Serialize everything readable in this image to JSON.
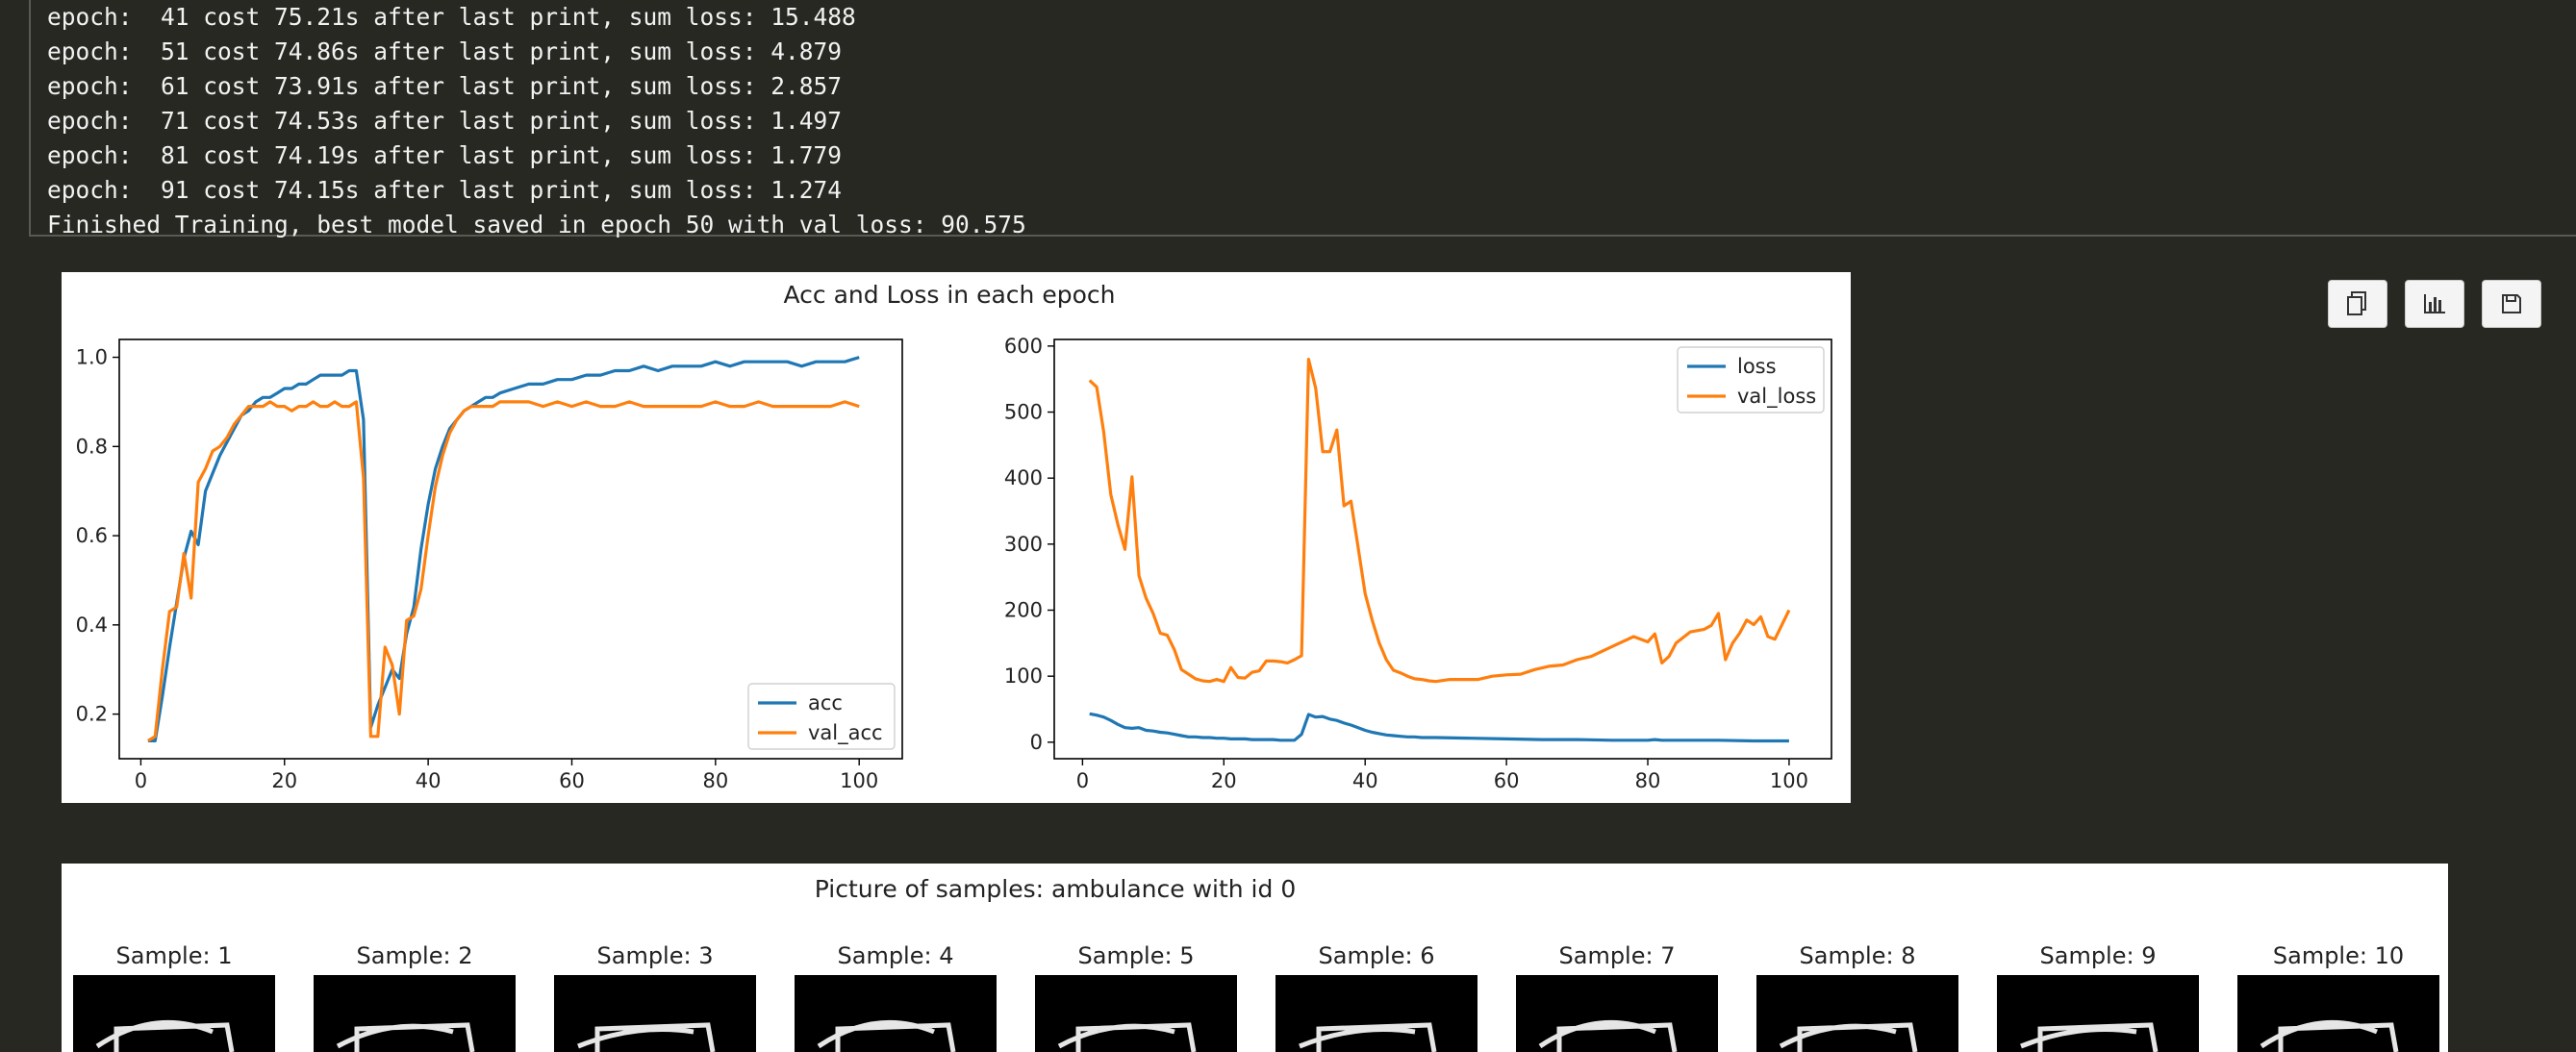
{
  "console": {
    "lines": [
      "epoch:  41 cost 75.21s after last print, sum loss: 15.488",
      "epoch:  51 cost 74.86s after last print, sum loss: 4.879",
      "epoch:  61 cost 73.91s after last print, sum loss: 2.857",
      "epoch:  71 cost 74.53s after last print, sum loss: 1.497",
      "epoch:  81 cost 74.19s after last print, sum loss: 1.779",
      "epoch:  91 cost 74.15s after last print, sum loss: 1.274",
      "Finished Training, best model saved in epoch 50 with val loss: 90.575"
    ]
  },
  "toolbar": {
    "icons": [
      "copy-icon",
      "chart-icon",
      "save-icon"
    ]
  },
  "colors": {
    "background": "#272822",
    "series_blue": "#1f77b4",
    "series_orange": "#ff7f0e"
  },
  "figure1": {
    "suptitle": "Acc and Loss in each epoch"
  },
  "figure2": {
    "title": "Picture of samples: ambulance with id 0",
    "samples": [
      "Sample: 1",
      "Sample: 2",
      "Sample: 3",
      "Sample: 4",
      "Sample: 5",
      "Sample: 6",
      "Sample: 7",
      "Sample: 8",
      "Sample: 9",
      "Sample: 10"
    ]
  },
  "chart_data": [
    {
      "type": "line",
      "title": "",
      "xlabel": "",
      "ylabel": "",
      "xlim": [
        -3,
        106
      ],
      "ylim": [
        0.1,
        1.04
      ],
      "xticks": [
        0,
        20,
        40,
        60,
        80,
        100
      ],
      "yticks": [
        0.2,
        0.4,
        0.6,
        0.8,
        1.0
      ],
      "ytick_labels": [
        "0.2",
        "0.4",
        "0.6",
        "0.8",
        "1.0"
      ],
      "legend_position": "lower-right",
      "series": [
        {
          "name": "acc",
          "color": "#1f77b4",
          "x": [
            1,
            2,
            3,
            4,
            5,
            6,
            7,
            8,
            9,
            10,
            11,
            12,
            13,
            14,
            15,
            16,
            17,
            18,
            19,
            20,
            21,
            22,
            23,
            24,
            25,
            26,
            27,
            28,
            29,
            30,
            31,
            32,
            33,
            34,
            35,
            36,
            37,
            38,
            39,
            40,
            41,
            42,
            43,
            44,
            45,
            46,
            47,
            48,
            49,
            50,
            52,
            54,
            56,
            58,
            60,
            62,
            64,
            66,
            68,
            70,
            72,
            74,
            76,
            78,
            80,
            82,
            84,
            86,
            88,
            90,
            92,
            94,
            96,
            98,
            100
          ],
          "values": [
            0.14,
            0.14,
            0.24,
            0.35,
            0.45,
            0.55,
            0.61,
            0.58,
            0.7,
            0.74,
            0.78,
            0.81,
            0.84,
            0.87,
            0.88,
            0.9,
            0.91,
            0.91,
            0.92,
            0.93,
            0.93,
            0.94,
            0.94,
            0.95,
            0.96,
            0.96,
            0.96,
            0.96,
            0.97,
            0.97,
            0.86,
            0.17,
            0.22,
            0.26,
            0.3,
            0.28,
            0.38,
            0.44,
            0.57,
            0.67,
            0.75,
            0.8,
            0.84,
            0.86,
            0.88,
            0.89,
            0.9,
            0.91,
            0.91,
            0.92,
            0.93,
            0.94,
            0.94,
            0.95,
            0.95,
            0.96,
            0.96,
            0.97,
            0.97,
            0.98,
            0.97,
            0.98,
            0.98,
            0.98,
            0.99,
            0.98,
            0.99,
            0.99,
            0.99,
            0.99,
            0.98,
            0.99,
            0.99,
            0.99,
            1.0
          ]
        },
        {
          "name": "val_acc",
          "color": "#ff7f0e",
          "x": [
            1,
            2,
            3,
            4,
            5,
            6,
            7,
            8,
            9,
            10,
            11,
            12,
            13,
            14,
            15,
            16,
            17,
            18,
            19,
            20,
            21,
            22,
            23,
            24,
            25,
            26,
            27,
            28,
            29,
            30,
            31,
            32,
            33,
            34,
            35,
            36,
            37,
            38,
            39,
            40,
            41,
            42,
            43,
            44,
            45,
            46,
            47,
            48,
            49,
            50,
            52,
            54,
            56,
            58,
            60,
            62,
            64,
            66,
            68,
            70,
            72,
            74,
            76,
            78,
            80,
            82,
            84,
            86,
            88,
            90,
            92,
            94,
            96,
            98,
            100
          ],
          "values": [
            0.14,
            0.15,
            0.3,
            0.43,
            0.44,
            0.56,
            0.46,
            0.72,
            0.75,
            0.79,
            0.8,
            0.82,
            0.85,
            0.87,
            0.89,
            0.89,
            0.89,
            0.9,
            0.89,
            0.89,
            0.88,
            0.89,
            0.89,
            0.9,
            0.89,
            0.89,
            0.9,
            0.89,
            0.89,
            0.9,
            0.73,
            0.15,
            0.15,
            0.35,
            0.31,
            0.2,
            0.41,
            0.42,
            0.48,
            0.6,
            0.71,
            0.78,
            0.83,
            0.86,
            0.88,
            0.89,
            0.89,
            0.89,
            0.89,
            0.9,
            0.9,
            0.9,
            0.89,
            0.9,
            0.89,
            0.9,
            0.89,
            0.89,
            0.9,
            0.89,
            0.89,
            0.89,
            0.89,
            0.89,
            0.9,
            0.89,
            0.89,
            0.9,
            0.89,
            0.89,
            0.89,
            0.89,
            0.89,
            0.9,
            0.89
          ]
        }
      ]
    },
    {
      "type": "line",
      "title": "",
      "xlabel": "",
      "ylabel": "",
      "xlim": [
        -4,
        106
      ],
      "ylim": [
        -25,
        610
      ],
      "xticks": [
        0,
        20,
        40,
        60,
        80,
        100
      ],
      "yticks": [
        0,
        100,
        200,
        300,
        400,
        500,
        600
      ],
      "ytick_labels": [
        "0",
        "100",
        "200",
        "300",
        "400",
        "500",
        "600"
      ],
      "legend_position": "upper-right",
      "series": [
        {
          "name": "loss",
          "color": "#1f77b4",
          "x": [
            1,
            2,
            3,
            4,
            5,
            6,
            7,
            8,
            9,
            10,
            11,
            12,
            13,
            14,
            15,
            16,
            17,
            18,
            19,
            20,
            21,
            22,
            23,
            24,
            25,
            26,
            27,
            28,
            29,
            30,
            31,
            32,
            33,
            34,
            35,
            36,
            37,
            38,
            39,
            40,
            41,
            42,
            43,
            44,
            45,
            46,
            47,
            48,
            49,
            50,
            55,
            60,
            65,
            70,
            75,
            80,
            81,
            82,
            85,
            90,
            95,
            100
          ],
          "values": [
            43,
            41,
            38,
            33,
            27,
            22,
            21,
            22,
            18,
            17,
            15,
            14,
            12,
            10,
            8,
            8,
            7,
            7,
            6,
            6,
            5,
            5,
            5,
            4,
            4,
            4,
            4,
            3,
            3,
            3,
            12,
            42,
            38,
            39,
            35,
            33,
            29,
            26,
            22,
            18,
            15,
            13,
            11,
            10,
            9,
            8,
            8,
            7,
            7,
            7,
            6,
            5,
            4,
            4,
            3,
            3,
            4,
            3,
            3,
            3,
            2,
            2
          ]
        },
        {
          "name": "val_loss",
          "color": "#ff7f0e",
          "x": [
            1,
            2,
            3,
            4,
            5,
            6,
            7,
            8,
            9,
            10,
            11,
            12,
            13,
            14,
            15,
            16,
            17,
            18,
            19,
            20,
            21,
            22,
            23,
            24,
            25,
            26,
            27,
            28,
            29,
            30,
            31,
            32,
            33,
            34,
            35,
            36,
            37,
            38,
            39,
            40,
            41,
            42,
            43,
            44,
            45,
            46,
            47,
            48,
            49,
            50,
            52,
            54,
            56,
            58,
            60,
            62,
            64,
            66,
            68,
            70,
            72,
            74,
            76,
            78,
            80,
            81,
            82,
            83,
            84,
            86,
            88,
            89,
            90,
            91,
            92,
            93,
            94,
            95,
            96,
            97,
            98,
            100
          ],
          "values": [
            548,
            538,
            470,
            375,
            330,
            292,
            402,
            252,
            218,
            195,
            165,
            162,
            140,
            110,
            103,
            96,
            93,
            92,
            95,
            92,
            113,
            98,
            97,
            106,
            108,
            123,
            123,
            122,
            120,
            125,
            131,
            580,
            536,
            440,
            440,
            473,
            358,
            365,
            295,
            225,
            185,
            150,
            125,
            109,
            105,
            100,
            96,
            95,
            93,
            92,
            95,
            95,
            95,
            100,
            102,
            103,
            110,
            115,
            117,
            125,
            130,
            140,
            150,
            160,
            152,
            164,
            120,
            130,
            150,
            167,
            171,
            177,
            195,
            125,
            150,
            165,
            185,
            178,
            190,
            160,
            156,
            200
          ]
        }
      ]
    }
  ]
}
